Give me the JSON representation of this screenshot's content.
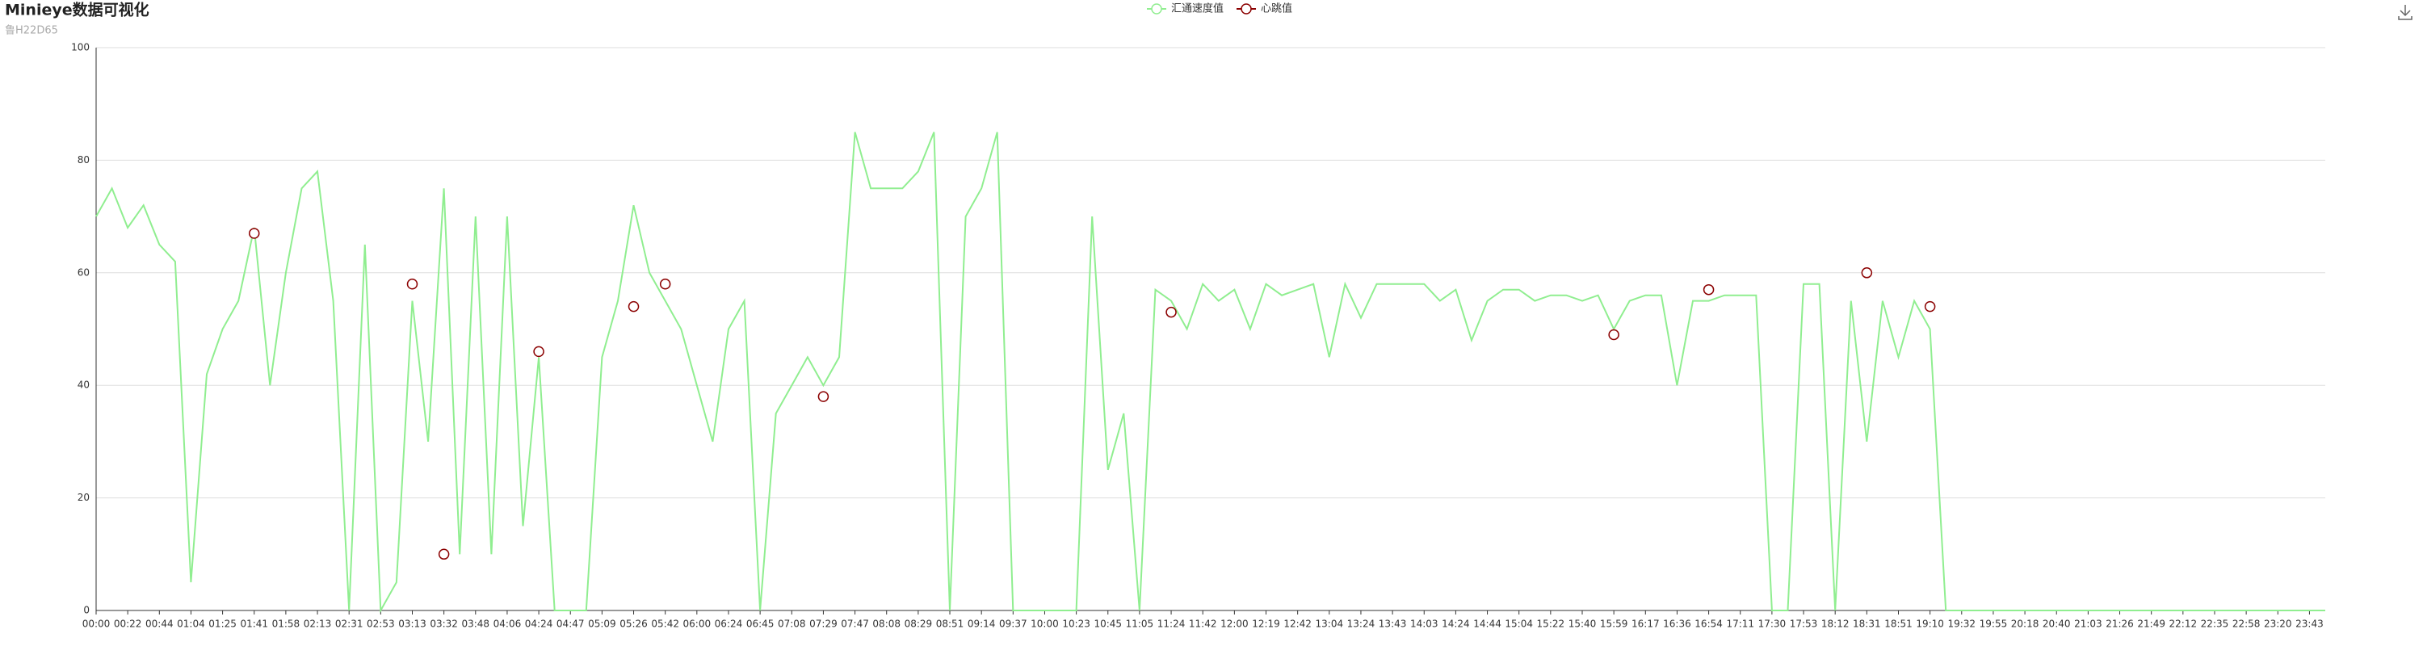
{
  "chart_data": {
    "type": "line",
    "title": "Minieye数据可视化",
    "subtitle": "鲁H22D65",
    "categories": [
      "00:00",
      null,
      "00:22",
      null,
      "00:44",
      null,
      "01:04",
      null,
      "01:25",
      null,
      "01:41",
      null,
      "01:58",
      null,
      "02:13",
      null,
      "02:31",
      null,
      "02:53",
      null,
      "03:13",
      null,
      "03:32",
      null,
      "03:48",
      null,
      "04:06",
      null,
      "04:24",
      null,
      "04:47",
      null,
      "05:09",
      null,
      "05:26",
      null,
      "05:42",
      null,
      "06:00",
      null,
      "06:24",
      null,
      "06:45",
      null,
      "07:08",
      null,
      "07:29",
      null,
      "07:47",
      null,
      "08:08",
      null,
      "08:29",
      null,
      "08:51",
      null,
      "09:14",
      null,
      "09:37",
      null,
      "10:00",
      null,
      "10:23",
      null,
      "10:45",
      null,
      "11:05",
      null,
      "11:24",
      null,
      "11:42",
      null,
      "12:00",
      null,
      "12:19",
      null,
      "12:42",
      null,
      "13:04",
      null,
      "13:24",
      null,
      "13:43",
      null,
      "14:03",
      null,
      "14:24",
      null,
      "14:44",
      null,
      "15:04",
      null,
      "15:22",
      null,
      "15:40",
      null,
      "15:59",
      null,
      "16:17",
      null,
      "16:36",
      null,
      "16:54",
      null,
      "17:11",
      null,
      "17:30",
      null,
      "17:53",
      null,
      "18:12",
      null,
      "18:31",
      null,
      "18:51",
      null,
      "19:10",
      null,
      "19:32",
      null,
      "19:55",
      null,
      "20:18",
      null,
      "20:40",
      null,
      "21:03",
      null,
      "21:26",
      null,
      "21:49",
      null,
      "22:12",
      null,
      "22:35",
      null,
      "22:58",
      null,
      "23:20",
      null,
      "23:43",
      null
    ],
    "series": [
      {
        "name": "汇通速度值",
        "color": "#90ee90",
        "values": [
          70,
          75,
          68,
          72,
          65,
          62,
          5,
          42,
          50,
          55,
          68,
          40,
          60,
          75,
          78,
          55,
          0,
          65,
          0,
          5,
          55,
          30,
          75,
          10,
          70,
          10,
          70,
          15,
          45,
          0,
          0,
          0,
          45,
          55,
          72,
          60,
          55,
          50,
          40,
          30,
          50,
          55,
          0,
          35,
          40,
          45,
          40,
          45,
          85,
          75,
          75,
          75,
          78,
          85,
          0,
          70,
          75,
          85,
          0,
          0,
          0,
          0,
          0,
          70,
          25,
          35,
          0,
          57,
          55,
          50,
          58,
          55,
          57,
          50,
          58,
          56,
          57,
          58,
          45,
          58,
          52,
          58,
          58,
          58,
          58,
          55,
          57,
          48,
          55,
          57,
          57,
          55,
          56,
          56,
          55,
          56,
          50,
          55,
          56,
          56,
          40,
          55,
          55,
          56,
          56,
          56,
          0,
          0,
          58,
          58,
          0,
          55,
          30,
          55,
          45,
          55,
          50,
          0,
          0,
          0,
          0,
          0,
          0,
          0,
          0,
          0,
          0,
          0,
          0,
          0,
          0,
          0,
          0,
          0,
          0,
          0,
          0,
          0,
          0,
          0,
          0,
          0
        ]
      },
      {
        "name": "心跳值",
        "color": "#8b0000",
        "values": [
          null,
          null,
          null,
          null,
          null,
          null,
          null,
          null,
          null,
          null,
          67,
          null,
          null,
          null,
          null,
          null,
          null,
          null,
          null,
          null,
          58,
          null,
          10,
          null,
          null,
          null,
          null,
          null,
          46,
          null,
          null,
          null,
          null,
          null,
          54,
          null,
          58,
          null,
          null,
          null,
          null,
          null,
          null,
          null,
          null,
          null,
          38,
          null,
          null,
          null,
          null,
          null,
          null,
          null,
          null,
          null,
          null,
          null,
          null,
          null,
          null,
          null,
          null,
          null,
          null,
          null,
          null,
          null,
          53,
          null,
          null,
          null,
          null,
          null,
          null,
          null,
          null,
          null,
          null,
          null,
          null,
          null,
          null,
          null,
          null,
          null,
          null,
          null,
          null,
          null,
          null,
          null,
          null,
          null,
          null,
          null,
          49,
          null,
          null,
          null,
          null,
          null,
          57,
          null,
          null,
          null,
          null,
          null,
          null,
          null,
          null,
          null,
          60,
          null,
          null,
          null,
          54,
          null,
          null,
          null,
          null,
          null,
          null,
          null,
          null,
          null,
          null,
          null,
          null,
          null,
          null,
          null,
          null,
          null,
          null,
          null,
          null,
          null,
          null,
          null,
          null,
          null
        ]
      }
    ],
    "ylim": [
      0,
      100
    ],
    "yticks": [
      0,
      20,
      40,
      60,
      80,
      100
    ],
    "grid": true,
    "legend": "top"
  }
}
